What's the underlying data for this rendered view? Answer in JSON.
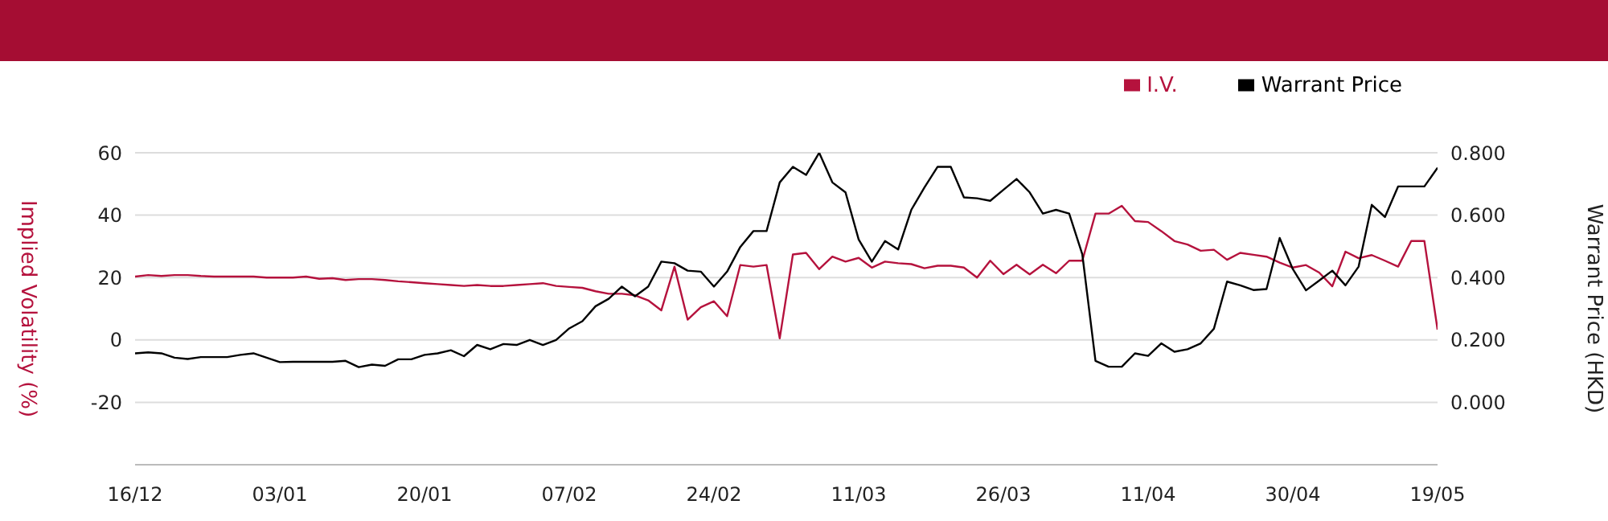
{
  "chart_data": {
    "type": "line",
    "ylabel": "Implied Volatility (%)",
    "y2label": "Warrant Price (HKD)",
    "categories": [
      "16/12",
      null,
      null,
      null,
      null,
      null,
      null,
      null,
      null,
      null,
      null,
      "03/01",
      null,
      null,
      null,
      null,
      null,
      null,
      null,
      null,
      null,
      null,
      "20/01",
      null,
      null,
      null,
      null,
      null,
      null,
      null,
      null,
      null,
      null,
      "07/02",
      null,
      null,
      null,
      null,
      null,
      null,
      null,
      null,
      null,
      null,
      "24/02",
      null,
      null,
      null,
      null,
      null,
      null,
      null,
      null,
      null,
      null,
      "11/03",
      null,
      null,
      null,
      null,
      null,
      null,
      null,
      null,
      null,
      null,
      "26/03",
      null,
      null,
      null,
      null,
      null,
      null,
      null,
      null,
      null,
      null,
      "11/04",
      null,
      null,
      null,
      null,
      null,
      null,
      null,
      null,
      null,
      null,
      "30/04",
      null,
      null,
      null,
      null,
      null,
      null,
      null,
      null,
      null,
      null,
      "19/05"
    ],
    "series": [
      {
        "name": "I.V.",
        "color": "#b5123d",
        "values": [
          20.3,
          20.8,
          20.5,
          20.8,
          20.8,
          20.5,
          20.3,
          20.3,
          20.3,
          20.3,
          20,
          20,
          20,
          20.3,
          19.6,
          19.8,
          19.2,
          19.5,
          19.5,
          19.2,
          18.8,
          18.5,
          18.2,
          17.9,
          17.6,
          17.3,
          17.6,
          17.3,
          17.3,
          17.6,
          17.9,
          18.2,
          17.3,
          17,
          16.7,
          15.6,
          14.8,
          14.8,
          14.3,
          12.7,
          9.5,
          23.5,
          6.5,
          10.5,
          12.4,
          7.6,
          24,
          23.5,
          24,
          0.5,
          27.4,
          27.9,
          22.7,
          26.7,
          25.1,
          26.3,
          23.2,
          25.1,
          24.6,
          24.3,
          23,
          23.8,
          23.8,
          23.2,
          20,
          25.4,
          21.1,
          24.1,
          21,
          24.1,
          21.4,
          25.4,
          25.4,
          40.5,
          40.5,
          43,
          38.1,
          37.8,
          34.9,
          31.7,
          30.6,
          28.6,
          28.9,
          25.7,
          27.9,
          27.3,
          26.7,
          24.8,
          23.2,
          24,
          21.6,
          17.2,
          28.3,
          26.2,
          27.2,
          25.4,
          23.5,
          31.7,
          31.7,
          3.3
        ]
      },
      {
        "name": "Warrant Price",
        "color": "#000000",
        "axis": "y2",
        "values": [
          0.157,
          0.16,
          0.157,
          0.143,
          0.139,
          0.145,
          0.145,
          0.145,
          0.152,
          0.157,
          0.143,
          0.129,
          0.13,
          0.13,
          0.13,
          0.13,
          0.133,
          0.113,
          0.121,
          0.117,
          0.138,
          0.138,
          0.152,
          0.157,
          0.167,
          0.148,
          0.184,
          0.17,
          0.187,
          0.184,
          0.2,
          0.184,
          0.2,
          0.237,
          0.26,
          0.308,
          0.332,
          0.371,
          0.34,
          0.371,
          0.451,
          0.446,
          0.422,
          0.419,
          0.371,
          0.419,
          0.498,
          0.549,
          0.549,
          0.705,
          0.755,
          0.729,
          0.8,
          0.705,
          0.673,
          0.522,
          0.451,
          0.517,
          0.49,
          0.617,
          0.689,
          0.755,
          0.755,
          0.657,
          0.654,
          0.646,
          0.681,
          0.716,
          0.673,
          0.605,
          0.617,
          0.605,
          0.474,
          0.133,
          0.114,
          0.114,
          0.157,
          0.149,
          0.189,
          0.162,
          0.17,
          0.189,
          0.236,
          0.387,
          0.375,
          0.36,
          0.363,
          0.527,
          0.427,
          0.359,
          0.39,
          0.422,
          0.375,
          0.435,
          0.633,
          0.594,
          0.692,
          0.692,
          0.692,
          0.752
        ]
      }
    ],
    "ylim": [
      -40,
      60
    ],
    "yticks": [
      -20,
      0,
      20,
      40,
      60
    ],
    "y2lim": [
      -0.2,
      0.8
    ],
    "y2ticks": [
      {
        "value": 0,
        "label": "0.000"
      },
      {
        "value": 0.2,
        "label": "0.200"
      },
      {
        "value": 0.4,
        "label": "0.400"
      },
      {
        "value": 0.6,
        "label": "0.600"
      },
      {
        "value": 0.8,
        "label": "0.800"
      }
    ],
    "grid": "y",
    "legend": "top right",
    "marker": "none",
    "line_style": "solid"
  }
}
